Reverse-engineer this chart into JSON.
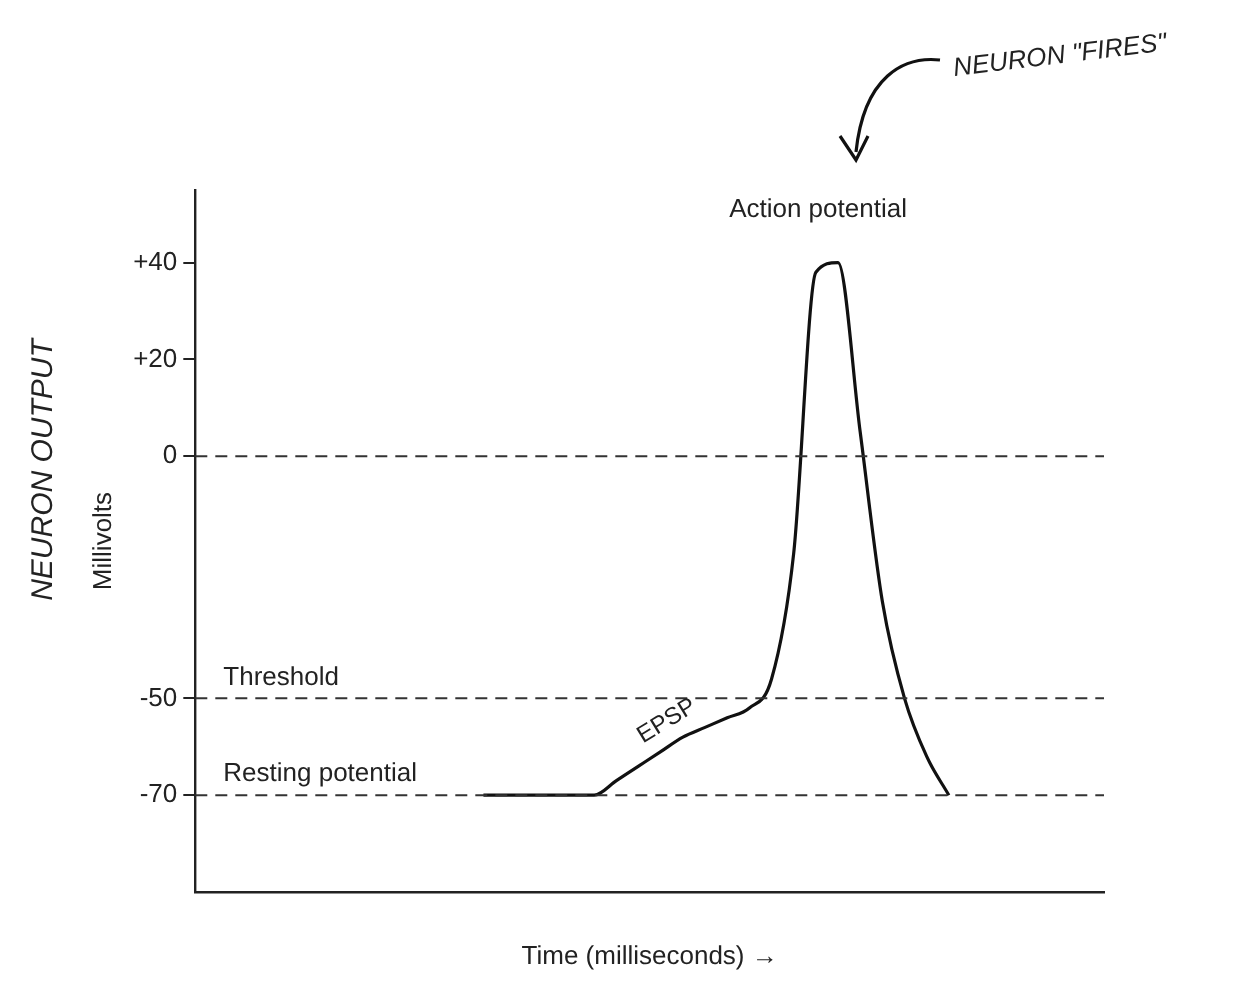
{
  "chart_data": {
    "type": "line",
    "xlabel": "Time (milliseconds) →",
    "ylabel": "Millivolts",
    "categories": [
      null,
      null,
      null,
      null,
      null,
      null,
      null,
      null,
      null,
      null,
      null,
      null,
      null,
      null,
      null,
      null,
      null,
      null,
      null,
      null,
      null,
      null,
      null,
      null,
      null,
      null,
      null,
      null,
      null,
      null,
      null,
      null,
      null,
      null,
      null,
      null,
      null,
      null,
      null,
      null,
      null,
      null
    ],
    "series": [
      {
        "color": "#111111",
        "values": [
          null,
          null,
          null,
          null,
          null,
          null,
          null,
          null,
          null,
          null,
          null,
          null,
          null,
          -70,
          -70,
          -70,
          -70,
          -70,
          -70,
          -67,
          -64,
          -61,
          -58,
          -56,
          -54,
          -52,
          -46,
          -20,
          38,
          40,
          5,
          -30,
          -50,
          -62,
          -70,
          null,
          null,
          null,
          null,
          null,
          null,
          null
        ]
      }
    ],
    "ylim": [
      -90,
      55
    ],
    "yticks": [
      {
        "value": 40,
        "label": "+40"
      },
      {
        "value": 20,
        "label": "+20"
      },
      0,
      -50,
      -70
    ],
    "ref_lines": [
      {
        "axis": "y",
        "value": 0,
        "line_style": "dashed"
      },
      {
        "axis": "y",
        "value": -50,
        "label": "Threshold",
        "line_style": "dashed"
      },
      {
        "axis": "y",
        "value": -70,
        "label": "Resting potential",
        "line_style": "dashed"
      }
    ],
    "annotations": [
      "Action potential",
      "EPSP",
      "NEURON OUTPUT",
      "NEURON \"FIRES\""
    ],
    "grid": false,
    "legend": false,
    "marker": "none",
    "line_style": "solid"
  }
}
